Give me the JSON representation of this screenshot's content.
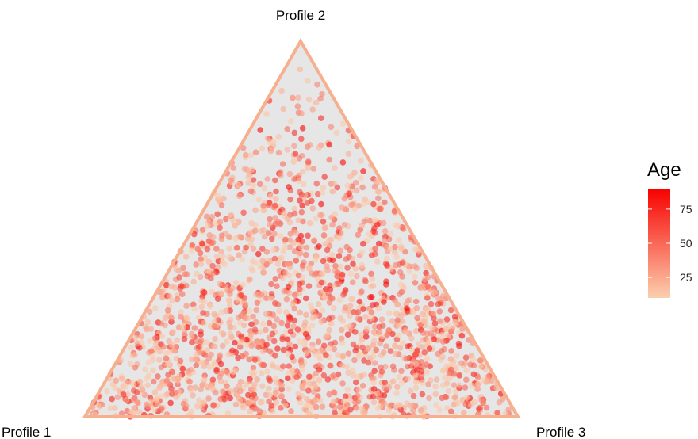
{
  "chart_data": {
    "type": "scatter",
    "subtype": "ternary",
    "title": "",
    "vertices": {
      "top": "Profile 2",
      "left": "Profile 1",
      "right": "Profile 3"
    },
    "axes": [
      "Profile 1",
      "Profile 2",
      "Profile 3"
    ],
    "color_variable": "Age",
    "color_scale": {
      "min": 10,
      "max": 90,
      "low_color": "#fbcfae",
      "high_color": "#f80000"
    },
    "legend": {
      "title": "Age",
      "ticks": [
        75,
        50,
        25
      ],
      "placement": "right"
    },
    "panel_fill": "#e6e6e6",
    "border_color": "#f6b08f",
    "points": [
      [
        0.62,
        0.06,
        0.32,
        28
      ],
      [
        0.1,
        0.81,
        0.09,
        44
      ],
      [
        0.37,
        0.3,
        0.33,
        22
      ],
      [
        0.45,
        0.12,
        0.43,
        61
      ],
      [
        0.21,
        0.24,
        0.55,
        35
      ],
      [
        0.75,
        0.18,
        0.07,
        19
      ],
      [
        0.05,
        0.4,
        0.55,
        52
      ],
      [
        0.33,
        0.55,
        0.12,
        27
      ],
      [
        0.52,
        0.38,
        0.1,
        40
      ],
      [
        0.18,
        0.05,
        0.77,
        33
      ],
      [
        0.28,
        0.15,
        0.57,
        71
      ],
      [
        0.64,
        0.26,
        0.1,
        24
      ],
      [
        0.12,
        0.62,
        0.26,
        38
      ],
      [
        0.41,
        0.44,
        0.15,
        29
      ],
      [
        0.08,
        0.18,
        0.74,
        45
      ],
      [
        0.57,
        0.22,
        0.21,
        31
      ],
      [
        0.3,
        0.66,
        0.04,
        26
      ],
      [
        0.86,
        0.05,
        0.09,
        57
      ],
      [
        0.23,
        0.42,
        0.35,
        21
      ],
      [
        0.48,
        0.05,
        0.47,
        66
      ],
      [
        0.15,
        0.33,
        0.52,
        30
      ],
      [
        0.7,
        0.12,
        0.18,
        42
      ],
      [
        0.04,
        0.7,
        0.26,
        23
      ],
      [
        0.36,
        0.2,
        0.44,
        48
      ]
    ]
  }
}
